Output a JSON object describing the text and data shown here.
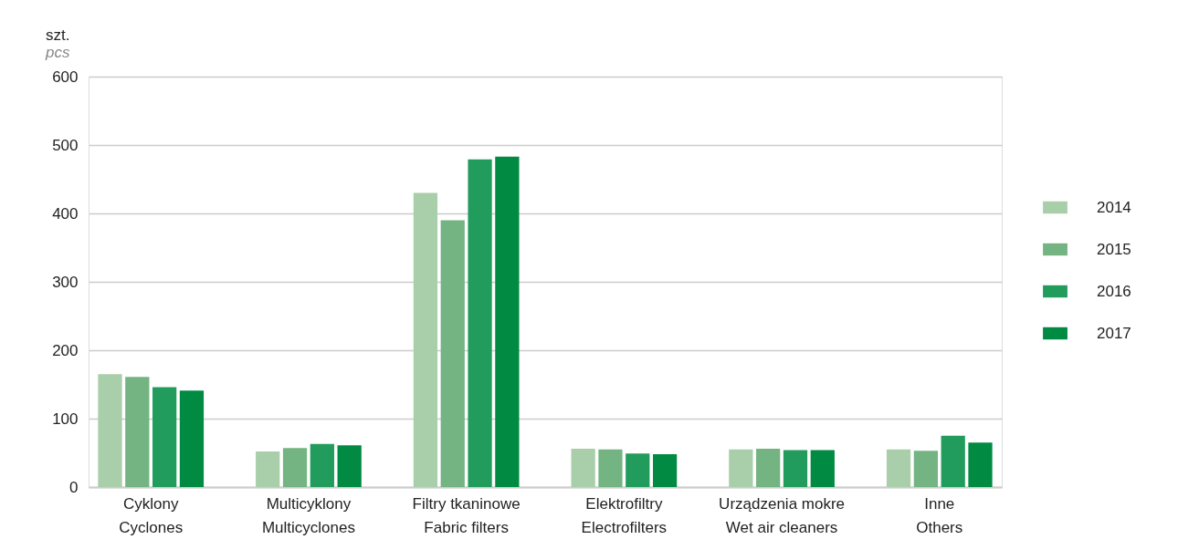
{
  "chart_data": {
    "type": "bar",
    "title": "szt.",
    "subtitle": "pcs",
    "categories": [
      "Cyklony\nCyclones",
      "Multicyklony\nMulticyclones",
      "Filtry tkaninowe\nFabric filters",
      "Elektrofiltry\nElectrofilters",
      "Urządzenia mokre\nWet air cleaners",
      "Inne\nOthers"
    ],
    "series": [
      {
        "name": "2014",
        "color": "#a8cfa9",
        "values": [
          165,
          52,
          430,
          56,
          55,
          55
        ]
      },
      {
        "name": "2015",
        "color": "#73b482",
        "values": [
          161,
          57,
          390,
          55,
          56,
          53
        ]
      },
      {
        "name": "2016",
        "color": "#229c5c",
        "values": [
          146,
          63,
          479,
          49,
          54,
          75
        ]
      },
      {
        "name": "2017",
        "color": "#008a42",
        "values": [
          141,
          61,
          483,
          48,
          54,
          65
        ]
      }
    ],
    "ylim": [
      0,
      600
    ],
    "yticks": [
      0,
      100,
      200,
      300,
      400,
      500,
      600
    ],
    "grid": "y",
    "legend": "right"
  }
}
